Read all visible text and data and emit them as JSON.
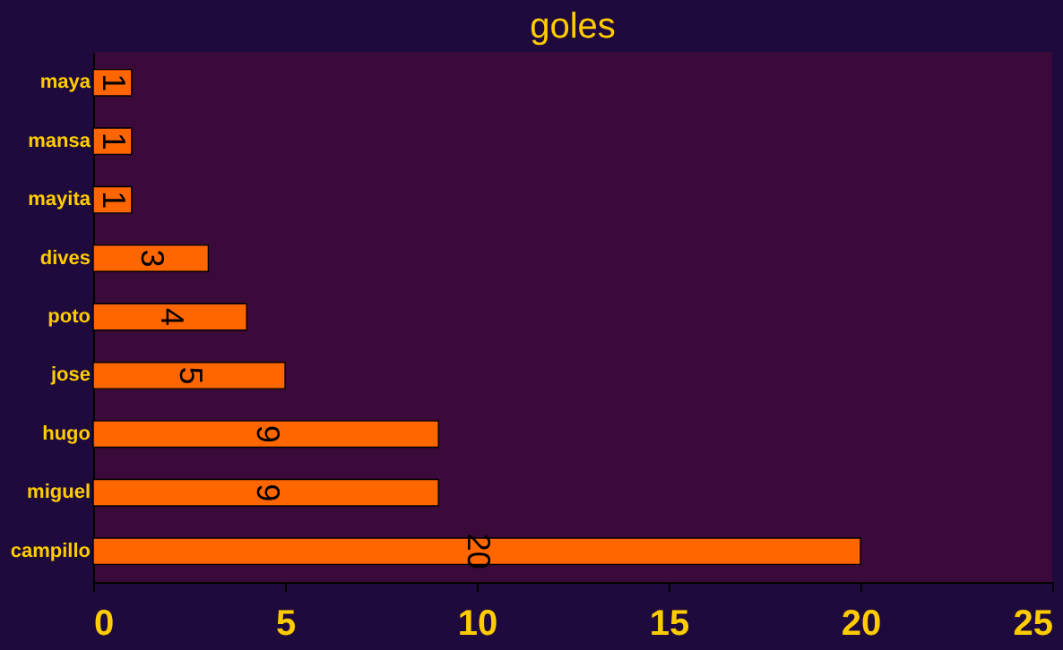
{
  "chart_data": {
    "type": "bar",
    "orientation": "horizontal",
    "title": "goles",
    "categories": [
      "maya",
      "mansa",
      "mayita",
      "dives",
      "poto",
      "jose",
      "hugo",
      "miguel",
      "campillo"
    ],
    "values": [
      1,
      1,
      1,
      3,
      4,
      5,
      9,
      9,
      20
    ],
    "color": "#ff6600",
    "xlim": [
      0,
      25
    ],
    "xticks": [
      0,
      5,
      10,
      15,
      20,
      25
    ],
    "grid": false,
    "data_labels": true
  }
}
